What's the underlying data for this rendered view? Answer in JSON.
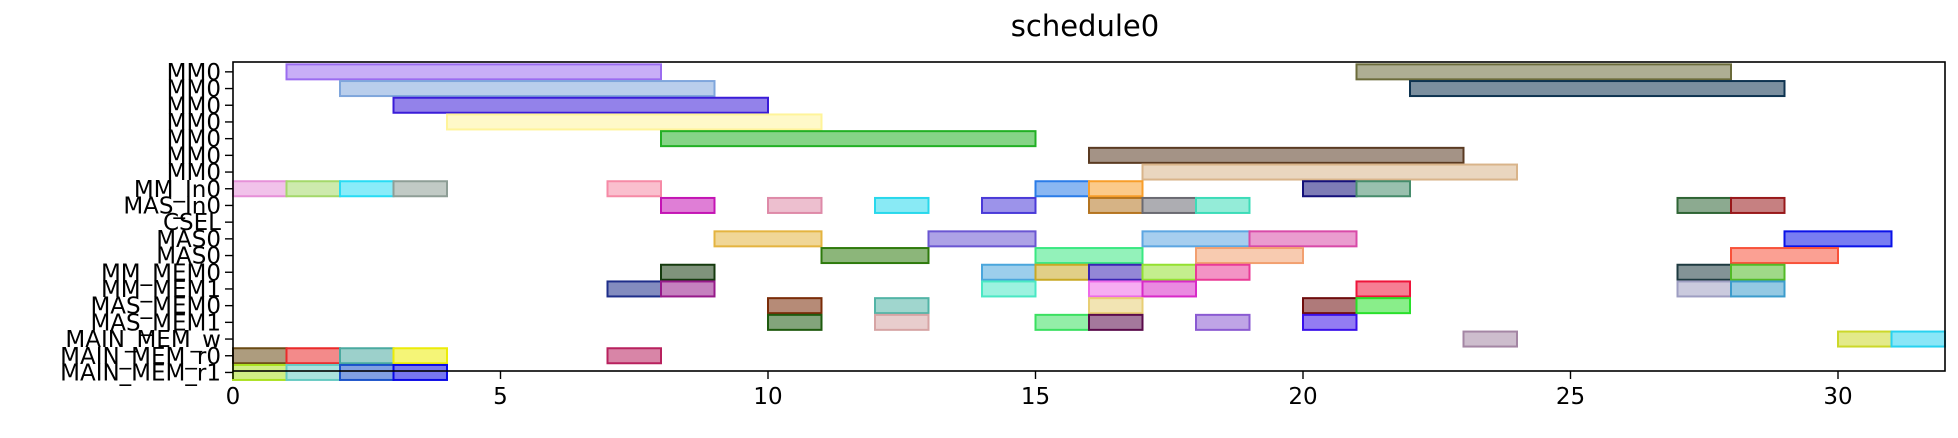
{
  "chart_data": {
    "type": "gantt",
    "title": "schedule0",
    "xlabel": "",
    "ylabel": "",
    "xlim": [
      0,
      32
    ],
    "xticks": [
      0,
      5,
      10,
      15,
      20,
      25,
      30
    ],
    "grid": false,
    "rows": [
      "MM0",
      "MM0",
      "MM0",
      "MM0",
      "MM0",
      "MM0",
      "MM0",
      "MM_In0",
      "MAS_In0",
      "CSEL",
      "MAS0",
      "MAS0",
      "MM_MEM0",
      "MM_MEM1",
      "MAS_MEM0",
      "MAS_MEM1",
      "MAIN_MEM_w",
      "MAIN_MEM_r0",
      "MAIN_MEM_r1"
    ],
    "bars": [
      {
        "row": 0,
        "start": 1,
        "end": 8,
        "color": "#9b6cf0"
      },
      {
        "row": 0,
        "start": 21,
        "end": 28,
        "color": "#6b6b3a"
      },
      {
        "row": 1,
        "start": 2,
        "end": 9,
        "color": "#7fa6dc"
      },
      {
        "row": 1,
        "start": 22,
        "end": 29,
        "color": "#0e3350"
      },
      {
        "row": 2,
        "start": 3,
        "end": 10,
        "color": "#3a1cd8"
      },
      {
        "row": 3,
        "start": 4,
        "end": 11,
        "color": "#fff49a"
      },
      {
        "row": 4,
        "start": 8,
        "end": 15,
        "color": "#22b024"
      },
      {
        "row": 5,
        "start": 16,
        "end": 23,
        "color": "#5a3a22"
      },
      {
        "row": 6,
        "start": 17,
        "end": 24,
        "color": "#d9b48a"
      },
      {
        "row": 7,
        "start": 0,
        "end": 1,
        "color": "#e690d8"
      },
      {
        "row": 7,
        "start": 1,
        "end": 2,
        "color": "#a4d86a"
      },
      {
        "row": 7,
        "start": 2,
        "end": 3,
        "color": "#28dcf4"
      },
      {
        "row": 7,
        "start": 3,
        "end": 4,
        "color": "#8e9e96"
      },
      {
        "row": 7,
        "start": 7,
        "end": 8,
        "color": "#f68aa6"
      },
      {
        "row": 7,
        "start": 15,
        "end": 16,
        "color": "#2a7ce8"
      },
      {
        "row": 7,
        "start": 16,
        "end": 17,
        "color": "#f89e2a"
      },
      {
        "row": 7,
        "start": 20,
        "end": 21,
        "color": "#14107a"
      },
      {
        "row": 7,
        "start": 21,
        "end": 22,
        "color": "#468c6c"
      },
      {
        "row": 8,
        "start": 8,
        "end": 9,
        "color": "#c414b4"
      },
      {
        "row": 8,
        "start": 10,
        "end": 11,
        "color": "#de8aa8"
      },
      {
        "row": 8,
        "start": 12,
        "end": 13,
        "color": "#28d8ec"
      },
      {
        "row": 8,
        "start": 14,
        "end": 15,
        "color": "#4a3ad8"
      },
      {
        "row": 8,
        "start": 16,
        "end": 17,
        "color": "#b47420"
      },
      {
        "row": 8,
        "start": 17,
        "end": 18,
        "color": "#6a6a72"
      },
      {
        "row": 8,
        "start": 18,
        "end": 19,
        "color": "#3cdcb8"
      },
      {
        "row": 8,
        "start": 27,
        "end": 28,
        "color": "#2e6434"
      },
      {
        "row": 8,
        "start": 28,
        "end": 29,
        "color": "#98181a"
      },
      {
        "row": 10,
        "start": 9,
        "end": 11,
        "color": "#e4b440"
      },
      {
        "row": 10,
        "start": 13,
        "end": 15,
        "color": "#6a56d2"
      },
      {
        "row": 10,
        "start": 17,
        "end": 19,
        "color": "#5ca6e2"
      },
      {
        "row": 10,
        "start": 19,
        "end": 21,
        "color": "#d84aa8"
      },
      {
        "row": 10,
        "start": 29,
        "end": 31,
        "color": "#0a12e8"
      },
      {
        "row": 11,
        "start": 11,
        "end": 13,
        "color": "#2e7a0c"
      },
      {
        "row": 11,
        "start": 15,
        "end": 17,
        "color": "#3ae882"
      },
      {
        "row": 11,
        "start": 18,
        "end": 20,
        "color": "#f2a070"
      },
      {
        "row": 11,
        "start": 28,
        "end": 30,
        "color": "#f8523a"
      },
      {
        "row": 12,
        "start": 8,
        "end": 9,
        "color": "#153a0e"
      },
      {
        "row": 12,
        "start": 14,
        "end": 15,
        "color": "#4aa6dc"
      },
      {
        "row": 12,
        "start": 15,
        "end": 16,
        "color": "#c8a824"
      },
      {
        "row": 12,
        "start": 16,
        "end": 17,
        "color": "#3a24b4"
      },
      {
        "row": 12,
        "start": 17,
        "end": 18,
        "color": "#94e030"
      },
      {
        "row": 12,
        "start": 18,
        "end": 19,
        "color": "#ea3a96"
      },
      {
        "row": 12,
        "start": 27,
        "end": 28,
        "color": "#1e3a40"
      },
      {
        "row": 12,
        "start": 28,
        "end": 29,
        "color": "#52ba26"
      },
      {
        "row": 13,
        "start": 7,
        "end": 8,
        "color": "#1e2e8a"
      },
      {
        "row": 13,
        "start": 8,
        "end": 9,
        "color": "#961a8a"
      },
      {
        "row": 13,
        "start": 14,
        "end": 15,
        "color": "#4ae8c4"
      },
      {
        "row": 13,
        "start": 16,
        "end": 17,
        "color": "#ee6ae8"
      },
      {
        "row": 13,
        "start": 17,
        "end": 18,
        "color": "#d82ac8"
      },
      {
        "row": 13,
        "start": 21,
        "end": 22,
        "color": "#ee143a"
      },
      {
        "row": 13,
        "start": 27,
        "end": 28,
        "color": "#9e9ec2"
      },
      {
        "row": 13,
        "start": 28,
        "end": 29,
        "color": "#3c9ccc"
      },
      {
        "row": 14,
        "start": 10,
        "end": 11,
        "color": "#7a2c08"
      },
      {
        "row": 14,
        "start": 12,
        "end": 13,
        "color": "#52b4a6"
      },
      {
        "row": 14,
        "start": 16,
        "end": 17,
        "color": "#e8ce74"
      },
      {
        "row": 14,
        "start": 20,
        "end": 21,
        "color": "#6e0c0c"
      },
      {
        "row": 14,
        "start": 21,
        "end": 22,
        "color": "#28e02a"
      },
      {
        "row": 15,
        "start": 10,
        "end": 11,
        "color": "#1e5a0e"
      },
      {
        "row": 15,
        "start": 12,
        "end": 13,
        "color": "#d6a4a4"
      },
      {
        "row": 15,
        "start": 15,
        "end": 16,
        "color": "#3ae060"
      },
      {
        "row": 15,
        "start": 16,
        "end": 17,
        "color": "#5a0a4a"
      },
      {
        "row": 15,
        "start": 18,
        "end": 19,
        "color": "#8a5ad2"
      },
      {
        "row": 15,
        "start": 20,
        "end": 21,
        "color": "#3a10ea"
      },
      {
        "row": 16,
        "start": 23,
        "end": 24,
        "color": "#a486a4"
      },
      {
        "row": 16,
        "start": 30,
        "end": 31,
        "color": "#ccd82a"
      },
      {
        "row": 16,
        "start": 31,
        "end": 32,
        "color": "#28d2f0"
      },
      {
        "row": 17,
        "start": 0,
        "end": 1,
        "color": "#6a4a14"
      },
      {
        "row": 17,
        "start": 1,
        "end": 2,
        "color": "#ea2a2a"
      },
      {
        "row": 17,
        "start": 2,
        "end": 3,
        "color": "#4aaaa0"
      },
      {
        "row": 17,
        "start": 3,
        "end": 4,
        "color": "#ecec08"
      },
      {
        "row": 17,
        "start": 7,
        "end": 8,
        "color": "#b8215e"
      },
      {
        "row": 18,
        "start": 0,
        "end": 1,
        "color": "#aae020"
      },
      {
        "row": 18,
        "start": 1,
        "end": 2,
        "color": "#66cac2"
      },
      {
        "row": 18,
        "start": 2,
        "end": 3,
        "color": "#1a52ca"
      },
      {
        "row": 18,
        "start": 3,
        "end": 4,
        "color": "#0a08e6"
      }
    ]
  }
}
